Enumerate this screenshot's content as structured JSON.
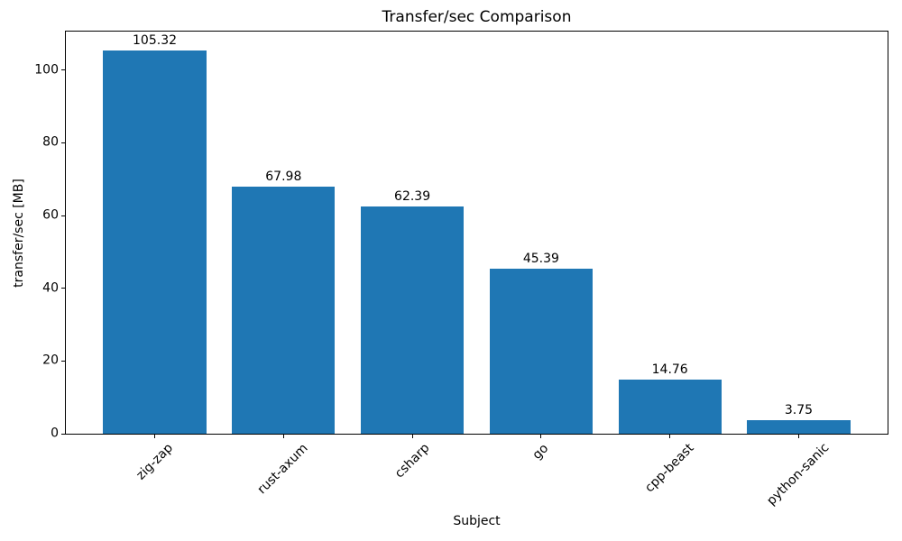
{
  "figure": {
    "background": "#ffffff",
    "text_color": "#000000"
  },
  "chart_data": {
    "type": "bar",
    "title": "Transfer/sec Comparison",
    "xlabel": "Subject",
    "ylabel": "transfer/sec [MB]",
    "categories": [
      "zig-zap",
      "rust-axum",
      "csharp",
      "go",
      "cpp-beast",
      "python-sanic"
    ],
    "values": [
      105.32,
      67.98,
      62.39,
      45.39,
      14.76,
      3.75
    ],
    "bar_labels": [
      "105.32",
      "67.98",
      "62.39",
      "45.39",
      "14.76",
      "3.75"
    ],
    "bar_color": "#1f77b4",
    "yticks": [
      0,
      20,
      40,
      60,
      80,
      100
    ],
    "ytick_labels": [
      "0",
      "20",
      "40",
      "60",
      "80",
      "100"
    ],
    "ylim": [
      0,
      110.59
    ],
    "xtick_rotation": 45,
    "grid": false,
    "legend": null,
    "spine_color": "#000000"
  }
}
